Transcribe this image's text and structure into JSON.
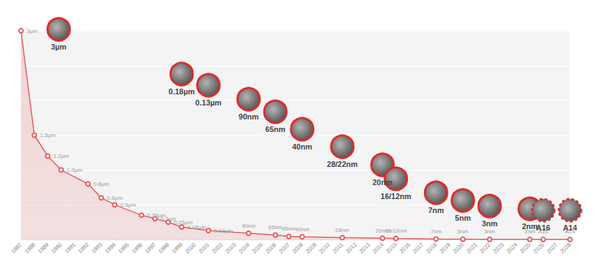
{
  "chart_data": {
    "type": "line",
    "categories": [
      "1987",
      "1988",
      "1989",
      "1990",
      "1991",
      "1992",
      "1993",
      "1994",
      "1995",
      "1996",
      "1997",
      "1998",
      "1999",
      "2000",
      "2001",
      "2002",
      "2003",
      "2004",
      "2005",
      "2006",
      "2007",
      "2008",
      "2009",
      "2010",
      "2011",
      "2012",
      "2013",
      "2014",
      "2015",
      "2016",
      "2017",
      "2018",
      "2019",
      "2020",
      "2021",
      "2022",
      "2023",
      "2024",
      "2025",
      "2026",
      "2027",
      "2028"
    ],
    "values": [
      3,
      1.5,
      1.2,
      1.0,
      null,
      0.8,
      0.6,
      0.5,
      null,
      0.35,
      0.3,
      0.25,
      0.18,
      null,
      0.13,
      null,
      null,
      0.09,
      null,
      0.065,
      0.045,
      0.04,
      null,
      null,
      0.028,
      null,
      null,
      0.02,
      0.016,
      null,
      null,
      0.007,
      null,
      0.005,
      null,
      0.003,
      null,
      null,
      0.002,
      0.0016,
      null,
      0.0014
    ],
    "value_labels": [
      "3µm",
      "1.5µm",
      "1.2µm",
      "1.0µm",
      null,
      "0.8µm",
      "0.6µm",
      "0.5µm",
      null,
      "0.35µm",
      "0.3µm",
      "0.25µm",
      "0.18µm",
      null,
      "0.13µm",
      null,
      null,
      "90nm",
      null,
      "65nm",
      "45nm",
      "40nm",
      null,
      null,
      "28nm",
      null,
      null,
      "20nm",
      "16/12nm",
      null,
      null,
      "7nm",
      null,
      "5nm",
      null,
      "3nm",
      null,
      null,
      "2nm",
      "A16",
      null,
      "A14"
    ],
    "color": "#e8585a",
    "marker": "emptyCircle",
    "data_labels": true,
    "ylim": [
      0,
      3
    ],
    "yticks": [
      0,
      0.5,
      1,
      1.5,
      2,
      2.5,
      3
    ],
    "grid": true,
    "tick_labels": "x",
    "annotations": [
      {
        "x": "1987",
        "text": "3µm",
        "line_style": "solid"
      },
      {
        "x": "1999",
        "text": "0.18µm",
        "line_style": "solid"
      },
      {
        "x": "2001",
        "text": "0.13µm",
        "line_style": "solid"
      },
      {
        "x": "2004",
        "text": "90nm",
        "line_style": "solid"
      },
      {
        "x": "2006",
        "text": "65nm",
        "line_style": "solid"
      },
      {
        "x": "2008",
        "text": "40nm",
        "line_style": "solid"
      },
      {
        "x": "2011",
        "text": "28/22nm",
        "line_style": "solid"
      },
      {
        "x": "2014",
        "text": "20nm",
        "line_style": "solid"
      },
      {
        "x": "2015",
        "text": "16/12nm",
        "line_style": "solid"
      },
      {
        "x": "2018",
        "text": "7nm",
        "line_style": "solid"
      },
      {
        "x": "2020",
        "text": "5nm",
        "line_style": "solid"
      },
      {
        "x": "2022",
        "text": "3nm",
        "line_style": "solid"
      },
      {
        "x": "2025",
        "text": "2nm",
        "line_style": "solid"
      },
      {
        "x": "2026",
        "text": "A16",
        "line_style": "dashed"
      },
      {
        "x": "2028",
        "text": "A14",
        "line_style": "dashed"
      }
    ]
  }
}
